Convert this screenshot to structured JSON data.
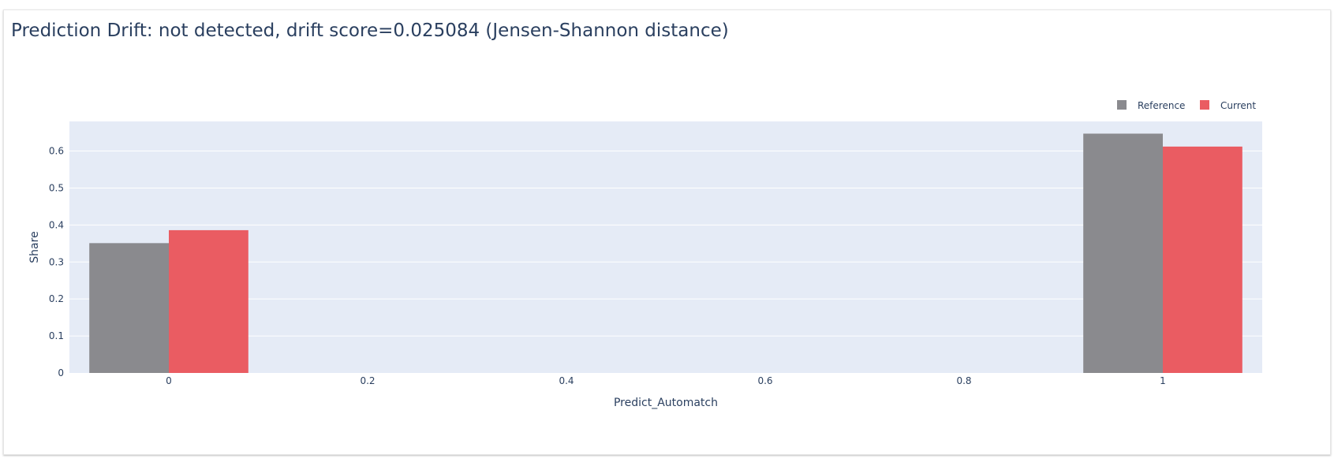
{
  "page": {
    "title": "Prediction Drift: not detected, drift score=0.025084 (Jensen-Shannon distance)"
  },
  "colors": {
    "reference": "#8a8a8e",
    "current": "#ea5c62",
    "plot_bg": "#e5ebf6",
    "grid": "#ffffff",
    "text": "#2a3f5f"
  },
  "chart_data": {
    "type": "bar",
    "title": "Prediction Drift: not detected, drift score=0.025084 (Jensen-Shannon distance)",
    "xlabel": "Predict_Automatch",
    "ylabel": "Share",
    "x": [
      0,
      1
    ],
    "xlim": [
      -0.1,
      1.1
    ],
    "ylim": [
      0,
      0.68
    ],
    "xticks": [
      0,
      0.2,
      0.4,
      0.6,
      0.8,
      1
    ],
    "xtick_labels": [
      "0",
      "0.2",
      "0.4",
      "0.6",
      "0.8",
      "1"
    ],
    "yticks": [
      0,
      0.1,
      0.2,
      0.3,
      0.4,
      0.5,
      0.6
    ],
    "ytick_labels": [
      "0",
      "0.1",
      "0.2",
      "0.3",
      "0.4",
      "0.5",
      "0.6"
    ],
    "grid": true,
    "legend_position": "top-right",
    "series": [
      {
        "name": "Reference",
        "values": [
          0.351,
          0.647
        ]
      },
      {
        "name": "Current",
        "values": [
          0.386,
          0.612
        ]
      }
    ]
  }
}
